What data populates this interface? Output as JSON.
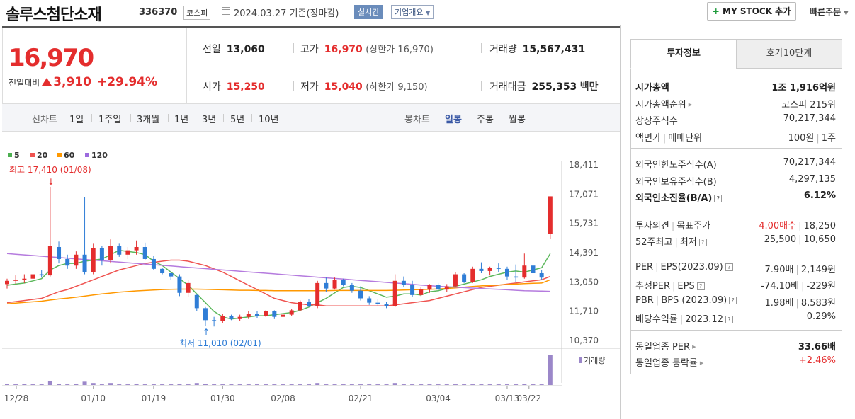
{
  "header": {
    "stock_name": "솔루스첨단소재",
    "stock_code": "336370",
    "market": "코스피",
    "date_text": "2024.03.27  기준(장마감)",
    "realtime_label": "실시간",
    "company_overview_label": "기업개요",
    "mystock_label": "MY STOCK 추가",
    "quick_order_label": "빠른주문"
  },
  "price": {
    "current": "16,970",
    "change_label": "전일대비",
    "change_value": "3,910",
    "change_pct": "+29.94%"
  },
  "summary": {
    "prev_close_label": "전일",
    "prev_close": "13,060",
    "high_label": "고가",
    "high": "16,970",
    "high_sub": "(상한가 16,970)",
    "volume_label": "거래량",
    "volume": "15,567,431",
    "open_label": "시가",
    "open": "15,250",
    "low_label": "저가",
    "low": "15,040",
    "low_sub": "(하한가 9,150)",
    "amount_label": "거래대금",
    "amount": "255,353",
    "amount_unit": "백만"
  },
  "chart_tabs": {
    "line_label": "선차트",
    "line_tabs": [
      "1일",
      "1주일",
      "3개월",
      "1년",
      "3년",
      "5년",
      "10년"
    ],
    "candle_label": "봉차트",
    "candle_tabs": [
      "일봉",
      "주봉",
      "월봉"
    ],
    "candle_active": "일봉"
  },
  "right_panel": {
    "tabs": [
      "투자정보",
      "호가10단계"
    ],
    "market_cap_label": "시가총액",
    "market_cap": "1조 1,916억원",
    "market_cap_rank_label": "시가총액순위",
    "market_cap_rank": "코스피 215위",
    "shares_label": "상장주식수",
    "shares": "70,217,344",
    "par_label": "액면가",
    "trade_unit_label": "매매단위",
    "par": "100원",
    "trade_unit": "1주",
    "foreign_limit_label": "외국인한도주식수(A)",
    "foreign_limit": "70,217,344",
    "foreign_hold_label": "외국인보유주식수(B)",
    "foreign_hold": "4,297,135",
    "foreign_ratio_label": "외국인소진율(B/A)",
    "foreign_ratio": "6.12%",
    "opinion_label": "투자의견",
    "target_label": "목표주가",
    "opinion": "4.00매수",
    "target": "18,250",
    "w52_high_label": "52주최고",
    "w52_low_label": "최저",
    "w52_high": "25,500",
    "w52_low": "10,650",
    "per_label": "PER",
    "eps_label": "EPS(2023.09)",
    "per": "7.90배",
    "eps": "2,149원",
    "est_per_label": "추정PER",
    "est_eps_label": "EPS",
    "est_per": "-74.10배",
    "est_eps": "-229원",
    "pbr_label": "PBR",
    "bps_label": "BPS (2023.09)",
    "pbr": "1.98배",
    "bps": "8,583원",
    "div_label": "배당수익률",
    "div_year": "2023.12",
    "div": "0.29%",
    "ind_per_label": "동일업종 PER",
    "ind_per": "33.66배",
    "ind_rate_label": "동일업종 등락률",
    "ind_rate": "+2.46%"
  },
  "chart_data": {
    "type": "candlestick",
    "legend": [
      {
        "name": "5",
        "color": "#4caf50"
      },
      {
        "name": "20",
        "color": "#ef5350"
      },
      {
        "name": "60",
        "color": "#ff9800"
      },
      {
        "name": "120",
        "color": "#9c6ade"
      }
    ],
    "y_ticks": [
      "18,411",
      "17,071",
      "15,731",
      "14,391",
      "13,050",
      "11,710",
      "10,370"
    ],
    "ylim": [
      10370,
      18411
    ],
    "x_ticks": [
      "12/28",
      "01/10",
      "01/19",
      "01/30",
      "02/08",
      "02/21",
      "03/04",
      "03/13",
      "03/22"
    ],
    "max_annotation": "최고 17,410 (01/08)",
    "min_annotation": "최저 11,010 (02/01)",
    "volume_label": "거래량",
    "candles": [
      {
        "o": 12950,
        "h": 13200,
        "l": 12750,
        "c": 13100
      },
      {
        "o": 13100,
        "h": 13350,
        "l": 12950,
        "c": 13150
      },
      {
        "o": 13150,
        "h": 13400,
        "l": 13000,
        "c": 13200
      },
      {
        "o": 13200,
        "h": 13500,
        "l": 13100,
        "c": 13400
      },
      {
        "o": 13400,
        "h": 13600,
        "l": 13250,
        "c": 13350
      },
      {
        "o": 13350,
        "h": 17410,
        "l": 13300,
        "c": 14700
      },
      {
        "o": 14650,
        "h": 14900,
        "l": 13900,
        "c": 14100
      },
      {
        "o": 14100,
        "h": 14300,
        "l": 13650,
        "c": 13800
      },
      {
        "o": 13800,
        "h": 14450,
        "l": 13650,
        "c": 14300
      },
      {
        "o": 14300,
        "h": 16950,
        "l": 13400,
        "c": 13500
      },
      {
        "o": 13500,
        "h": 14800,
        "l": 13400,
        "c": 14600
      },
      {
        "o": 14600,
        "h": 14700,
        "l": 13800,
        "c": 14050
      },
      {
        "o": 14050,
        "h": 15000,
        "l": 13900,
        "c": 14700
      },
      {
        "o": 14700,
        "h": 14800,
        "l": 14200,
        "c": 14300
      },
      {
        "o": 14300,
        "h": 14650,
        "l": 14100,
        "c": 14500
      },
      {
        "o": 14500,
        "h": 14950,
        "l": 14300,
        "c": 14650
      },
      {
        "o": 14650,
        "h": 14850,
        "l": 14050,
        "c": 14100
      },
      {
        "o": 14100,
        "h": 14250,
        "l": 13600,
        "c": 13650
      },
      {
        "o": 13650,
        "h": 13700,
        "l": 13400,
        "c": 13450
      },
      {
        "o": 13450,
        "h": 13550,
        "l": 13150,
        "c": 13300
      },
      {
        "o": 13300,
        "h": 13400,
        "l": 12400,
        "c": 12550
      },
      {
        "o": 12550,
        "h": 13150,
        "l": 12350,
        "c": 13000
      },
      {
        "o": 12450,
        "h": 12500,
        "l": 11700,
        "c": 11850
      },
      {
        "o": 11850,
        "h": 11900,
        "l": 11050,
        "c": 11300
      },
      {
        "o": 11300,
        "h": 11450,
        "l": 11010,
        "c": 11250
      },
      {
        "o": 11250,
        "h": 11600,
        "l": 11150,
        "c": 11500
      },
      {
        "o": 11500,
        "h": 11550,
        "l": 11300,
        "c": 11350
      },
      {
        "o": 11350,
        "h": 11550,
        "l": 11250,
        "c": 11450
      },
      {
        "o": 11450,
        "h": 11700,
        "l": 11350,
        "c": 11600
      },
      {
        "o": 11600,
        "h": 11700,
        "l": 11400,
        "c": 11500
      },
      {
        "o": 11500,
        "h": 11750,
        "l": 11450,
        "c": 11700
      },
      {
        "o": 11700,
        "h": 11750,
        "l": 11350,
        "c": 11450
      },
      {
        "o": 11450,
        "h": 11650,
        "l": 11300,
        "c": 11550
      },
      {
        "o": 11550,
        "h": 11800,
        "l": 11500,
        "c": 11750
      },
      {
        "o": 11750,
        "h": 12200,
        "l": 11700,
        "c": 12150
      },
      {
        "o": 12150,
        "h": 12250,
        "l": 11900,
        "c": 11950
      },
      {
        "o": 11950,
        "h": 13100,
        "l": 11850,
        "c": 13000
      },
      {
        "o": 13000,
        "h": 13250,
        "l": 12600,
        "c": 12750
      },
      {
        "o": 12750,
        "h": 13250,
        "l": 12700,
        "c": 13150
      },
      {
        "o": 13150,
        "h": 13200,
        "l": 12850,
        "c": 12900
      },
      {
        "o": 12900,
        "h": 13000,
        "l": 12550,
        "c": 12650
      },
      {
        "o": 12650,
        "h": 12850,
        "l": 12200,
        "c": 12300
      },
      {
        "o": 12300,
        "h": 12400,
        "l": 12000,
        "c": 12100
      },
      {
        "o": 12100,
        "h": 12250,
        "l": 11950,
        "c": 12050
      },
      {
        "o": 12050,
        "h": 12150,
        "l": 11850,
        "c": 11950
      },
      {
        "o": 11950,
        "h": 13400,
        "l": 11900,
        "c": 13100
      },
      {
        "o": 13100,
        "h": 13300,
        "l": 12800,
        "c": 12900
      },
      {
        "o": 12900,
        "h": 13100,
        "l": 12350,
        "c": 12450
      },
      {
        "o": 12450,
        "h": 12800,
        "l": 12400,
        "c": 12700
      },
      {
        "o": 12700,
        "h": 12950,
        "l": 12550,
        "c": 12900
      },
      {
        "o": 12900,
        "h": 13000,
        "l": 12600,
        "c": 12700
      },
      {
        "o": 12700,
        "h": 12950,
        "l": 12600,
        "c": 12850
      },
      {
        "o": 12850,
        "h": 13500,
        "l": 12800,
        "c": 13400
      },
      {
        "o": 13400,
        "h": 13450,
        "l": 13000,
        "c": 13050
      },
      {
        "o": 13050,
        "h": 13750,
        "l": 13000,
        "c": 13650
      },
      {
        "o": 13650,
        "h": 13950,
        "l": 13450,
        "c": 13550
      },
      {
        "o": 13550,
        "h": 13750,
        "l": 13350,
        "c": 13700
      },
      {
        "o": 13700,
        "h": 13900,
        "l": 13500,
        "c": 13650
      },
      {
        "o": 13650,
        "h": 13750,
        "l": 13150,
        "c": 13300
      },
      {
        "o": 13300,
        "h": 13850,
        "l": 13050,
        "c": 13250
      },
      {
        "o": 13250,
        "h": 14350,
        "l": 13200,
        "c": 13800
      },
      {
        "o": 13800,
        "h": 14100,
        "l": 13400,
        "c": 13450
      },
      {
        "o": 13450,
        "h": 13600,
        "l": 13150,
        "c": 13250
      },
      {
        "o": 15250,
        "h": 16970,
        "l": 15040,
        "c": 16970
      }
    ],
    "ma": {
      "5": [
        12900,
        12950,
        13000,
        13100,
        13200,
        13600,
        13800,
        13900,
        13900,
        14000,
        14050,
        14100,
        14300,
        14500,
        14450,
        14400,
        14300,
        14000,
        13800,
        13500,
        13200,
        12900,
        12500,
        12100,
        11700,
        11450,
        11350,
        11400,
        11450,
        11500,
        11500,
        11550,
        11600,
        11650,
        11750,
        11900,
        12100,
        12300,
        12550,
        12800,
        12850,
        12800,
        12650,
        12500,
        12350,
        12400,
        12500,
        12500,
        12450,
        12600,
        12650,
        12750,
        12850,
        12950,
        13050,
        13150,
        13300,
        13400,
        13500,
        13550,
        13500,
        13600,
        13700,
        14350
      ],
      "20": [
        12100,
        12150,
        12200,
        12250,
        12300,
        12450,
        12600,
        12700,
        12850,
        13000,
        13150,
        13300,
        13450,
        13600,
        13700,
        13800,
        13900,
        13950,
        14000,
        14050,
        14050,
        14000,
        13900,
        13800,
        13650,
        13500,
        13300,
        13100,
        12900,
        12700,
        12500,
        12300,
        12200,
        12100,
        12050,
        12000,
        12000,
        11950,
        11950,
        11950,
        11950,
        11950,
        11950,
        11950,
        11950,
        12000,
        12050,
        12100,
        12150,
        12200,
        12300,
        12400,
        12500,
        12600,
        12700,
        12800,
        12850,
        12900,
        12950,
        13000,
        13050,
        13100,
        13150,
        13300
      ],
      "60": [
        12050,
        12080,
        12110,
        12140,
        12170,
        12220,
        12270,
        12310,
        12350,
        12400,
        12450,
        12500,
        12540,
        12580,
        12610,
        12640,
        12660,
        12680,
        12700,
        12710,
        12720,
        12720,
        12720,
        12710,
        12700,
        12690,
        12680,
        12670,
        12670,
        12660,
        12660,
        12650,
        12650,
        12650,
        12650,
        12650,
        12650,
        12650,
        12660,
        12660,
        12660,
        12660,
        12660,
        12660,
        12660,
        12670,
        12680,
        12690,
        12700,
        12710,
        12730,
        12750,
        12780,
        12810,
        12840,
        12870,
        12890,
        12910,
        12930,
        12950,
        12970,
        12990,
        13000,
        13150
      ],
      "120": [
        14350,
        14320,
        14290,
        14260,
        14230,
        14200,
        14170,
        14140,
        14110,
        14080,
        14050,
        14020,
        13990,
        13960,
        13930,
        13900,
        13870,
        13840,
        13810,
        13780,
        13750,
        13720,
        13690,
        13660,
        13630,
        13600,
        13570,
        13540,
        13510,
        13480,
        13450,
        13420,
        13390,
        13360,
        13330,
        13300,
        13270,
        13240,
        13210,
        13180,
        13150,
        13120,
        13090,
        13060,
        13030,
        13000,
        12970,
        12940,
        12910,
        12880,
        12850,
        12830,
        12810,
        12790,
        12770,
        12750,
        12730,
        12710,
        12690,
        12670,
        12650,
        12640,
        12630,
        12620
      ]
    },
    "volume": [
      2,
      1,
      2,
      1,
      1,
      6,
      2,
      1,
      2,
      5,
      3,
      1,
      3,
      1,
      1,
      2,
      1,
      1,
      1,
      1,
      2,
      1,
      3,
      2,
      1,
      1,
      1,
      1,
      1,
      1,
      1,
      1,
      1,
      1,
      1,
      1,
      3,
      1,
      1,
      1,
      1,
      1,
      1,
      1,
      1,
      3,
      1,
      1,
      1,
      1,
      1,
      1,
      1,
      1,
      1,
      1,
      1,
      1,
      1,
      1,
      2,
      1,
      1,
      45
    ]
  }
}
